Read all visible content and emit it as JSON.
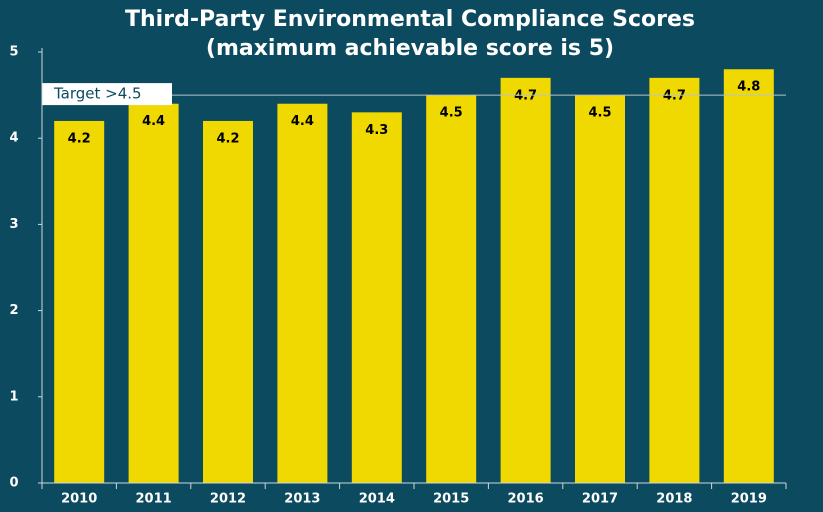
{
  "chart_data": {
    "type": "bar",
    "title": "Third-Party Environmental Compliance Scores",
    "subtitle": "(maximum achievable score is 5)",
    "categories": [
      "2010",
      "2011",
      "2012",
      "2013",
      "2014",
      "2015",
      "2016",
      "2017",
      "2018",
      "2019"
    ],
    "values": [
      4.2,
      4.4,
      4.2,
      4.4,
      4.3,
      4.5,
      4.7,
      4.5,
      4.7,
      4.8
    ],
    "color": "#efd900",
    "ylim": [
      0,
      5
    ],
    "yticks": [
      0,
      1,
      2,
      3,
      4,
      5
    ],
    "target": {
      "label": "Target >4.5",
      "value": 4.5
    }
  }
}
